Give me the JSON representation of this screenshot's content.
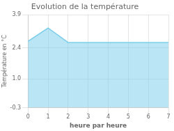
{
  "chart_data": {
    "type": "area",
    "title": "Evolution de la température",
    "xlabel": "heure par heure",
    "ylabel": "Température en °C",
    "x": [
      0,
      1,
      2,
      3,
      4,
      5,
      6,
      7
    ],
    "values": [
      2.7,
      3.3,
      2.65,
      2.65,
      2.65,
      2.65,
      2.65,
      2.65
    ],
    "color": "#7ecfea",
    "xlim": [
      0,
      7
    ],
    "xticks": [
      0,
      1,
      2,
      3,
      4,
      5,
      6,
      7
    ],
    "ylim": [
      -0.3,
      3.9
    ],
    "yticks": [
      -0.3,
      {
        "value": 1.0,
        "label": "1.0"
      },
      2.4,
      3.9
    ],
    "grid": true
  }
}
